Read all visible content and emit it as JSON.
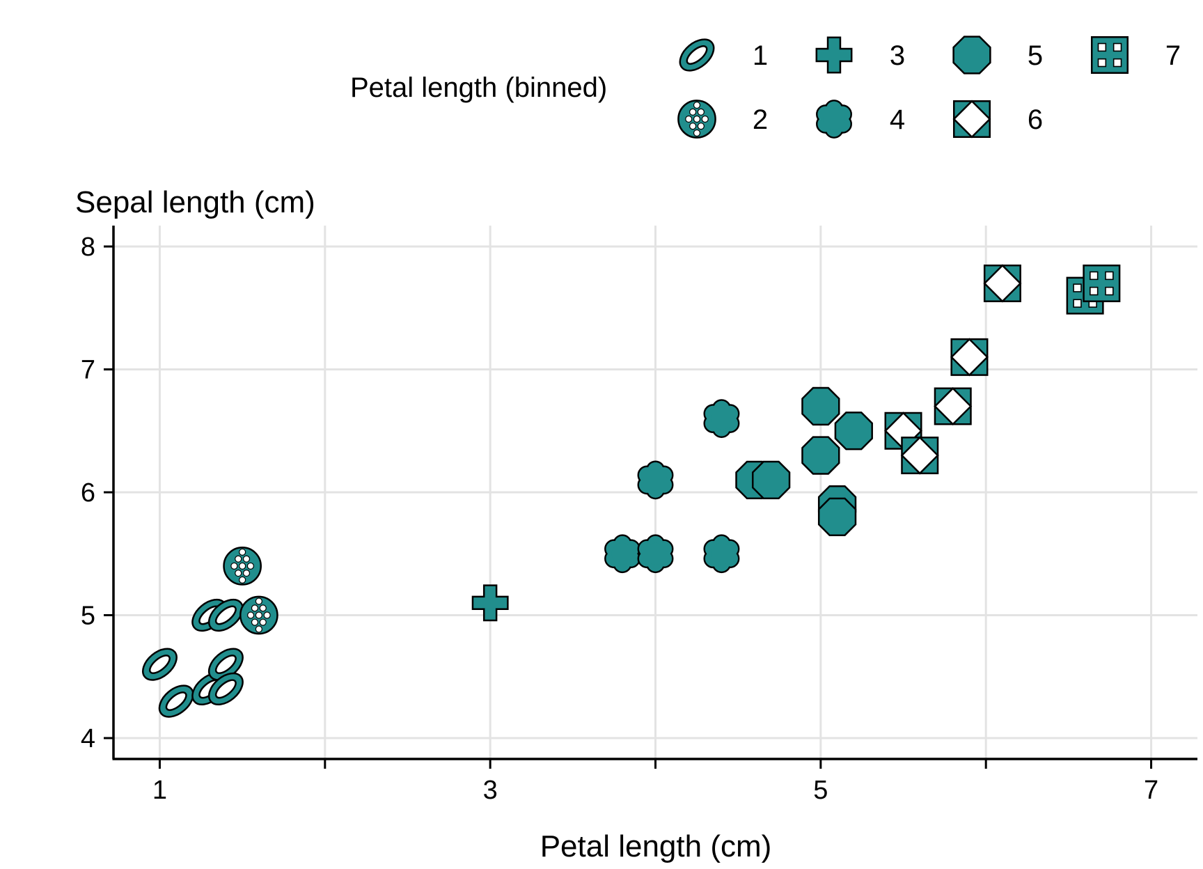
{
  "chart_data": {
    "type": "scatter",
    "title": "",
    "xlabel": "Petal length (cm)",
    "ylabel": "Sepal length (cm)",
    "xlim": [
      0.72,
      7.28
    ],
    "ylim": [
      3.83,
      8.17
    ],
    "x_ticks": [
      1,
      2,
      3,
      4,
      5,
      6,
      7
    ],
    "x_tick_labels": [
      "1",
      "",
      "3",
      "",
      "5",
      "",
      "7"
    ],
    "y_ticks": [
      4,
      5,
      6,
      7,
      8
    ],
    "y_tick_labels": [
      "4",
      "5",
      "6",
      "7",
      "8"
    ],
    "grid": true,
    "marker_color": "#218e8d",
    "legend": {
      "title": "Petal length (binned)",
      "placement": "top",
      "entries": [
        {
          "label": "1",
          "shape": "ellipse-ring"
        },
        {
          "label": "2",
          "shape": "dotted-circle"
        },
        {
          "label": "3",
          "shape": "cross"
        },
        {
          "label": "4",
          "shape": "flower"
        },
        {
          "label": "5",
          "shape": "octagon"
        },
        {
          "label": "6",
          "shape": "square-diamond"
        },
        {
          "label": "7",
          "shape": "square-grid"
        }
      ]
    },
    "series": [
      {
        "bin": "1",
        "points": [
          [
            1.0,
            4.6
          ],
          [
            1.1,
            4.3
          ],
          [
            1.3,
            4.4
          ],
          [
            1.3,
            5.0
          ],
          [
            1.4,
            5.0
          ],
          [
            1.4,
            4.6
          ],
          [
            1.4,
            4.4
          ]
        ]
      },
      {
        "bin": "2",
        "points": [
          [
            1.5,
            5.4
          ],
          [
            1.6,
            5.0
          ]
        ]
      },
      {
        "bin": "3",
        "points": [
          [
            3.0,
            5.1
          ]
        ]
      },
      {
        "bin": "4",
        "points": [
          [
            3.8,
            5.5
          ],
          [
            4.0,
            5.5
          ],
          [
            4.0,
            6.1
          ],
          [
            4.4,
            5.5
          ],
          [
            4.4,
            6.6
          ]
        ]
      },
      {
        "bin": "5",
        "points": [
          [
            4.6,
            6.1
          ],
          [
            4.7,
            6.1
          ],
          [
            5.0,
            6.7
          ],
          [
            5.0,
            6.3
          ],
          [
            5.1,
            5.9
          ],
          [
            5.1,
            5.8
          ],
          [
            5.2,
            6.5
          ]
        ]
      },
      {
        "bin": "6",
        "points": [
          [
            5.5,
            6.5
          ],
          [
            5.6,
            6.3
          ],
          [
            5.8,
            6.7
          ],
          [
            5.9,
            7.1
          ],
          [
            6.1,
            7.7
          ]
        ]
      },
      {
        "bin": "7",
        "points": [
          [
            6.6,
            7.6
          ],
          [
            6.7,
            7.7
          ]
        ]
      }
    ]
  }
}
